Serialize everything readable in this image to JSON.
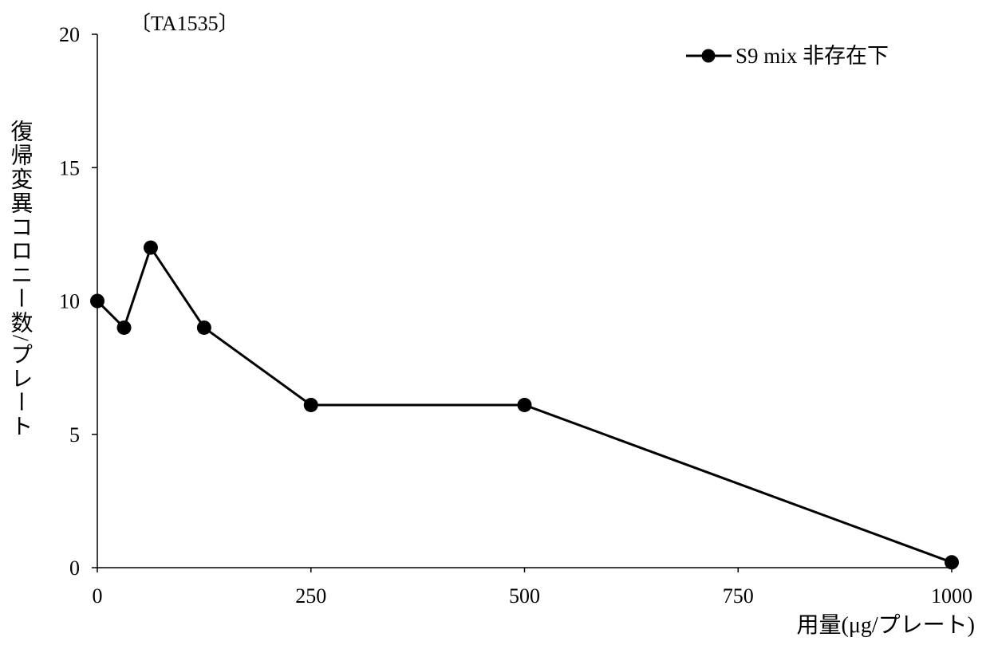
{
  "chart_data": {
    "type": "line",
    "title": "〔TA1535〕",
    "xlabel": "用量(μg/プレート)",
    "ylabel": "復帰変異コロニー数/プレート",
    "xlim": [
      0,
      1000
    ],
    "ylim": [
      0,
      20
    ],
    "x_ticks": [
      "0",
      "250",
      "500",
      "750",
      "1000"
    ],
    "y_ticks": [
      "0",
      "5",
      "10",
      "15",
      "20"
    ],
    "grid": false,
    "legend_position": "top-right",
    "series": [
      {
        "name": "S9 mix 非存在下",
        "color": "#000000",
        "marker": "circle",
        "x": [
          0,
          31.3,
          62.5,
          125,
          250,
          500,
          1000
        ],
        "y": [
          10,
          9,
          12,
          9,
          6.1,
          6.1,
          0.2
        ]
      }
    ]
  }
}
